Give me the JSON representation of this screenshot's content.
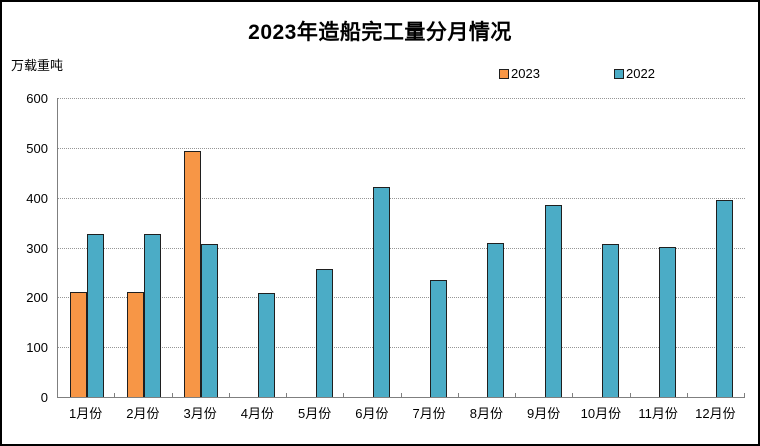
{
  "chart_data": {
    "type": "bar",
    "title": "2023年造船完工量分月情况",
    "unit_label": "万载重吨",
    "categories": [
      "1月份",
      "2月份",
      "3月份",
      "4月份",
      "5月份",
      "6月份",
      "7月份",
      "8月份",
      "9月份",
      "10月份",
      "11月份",
      "12月份"
    ],
    "series": [
      {
        "name": "2023",
        "color": "#F79646",
        "values": [
          211,
          211,
          494,
          null,
          null,
          null,
          null,
          null,
          null,
          null,
          null,
          null
        ]
      },
      {
        "name": "2022",
        "color": "#4BACC6",
        "values": [
          327,
          328,
          308,
          209,
          256,
          421,
          235,
          310,
          386,
          308,
          302,
          396
        ]
      }
    ],
    "ylim": [
      0,
      600
    ],
    "yticks": [
      600,
      500,
      400,
      300,
      200,
      100,
      0
    ],
    "grid": "horizontal-dotted",
    "legend_position": "top-right",
    "colors": {
      "axis": "#7f7f7f",
      "gridline": "#969696",
      "bar_border": "#1f1f1f",
      "frame_border": "#000000",
      "background": "#ffffff",
      "text": "#000000"
    }
  }
}
